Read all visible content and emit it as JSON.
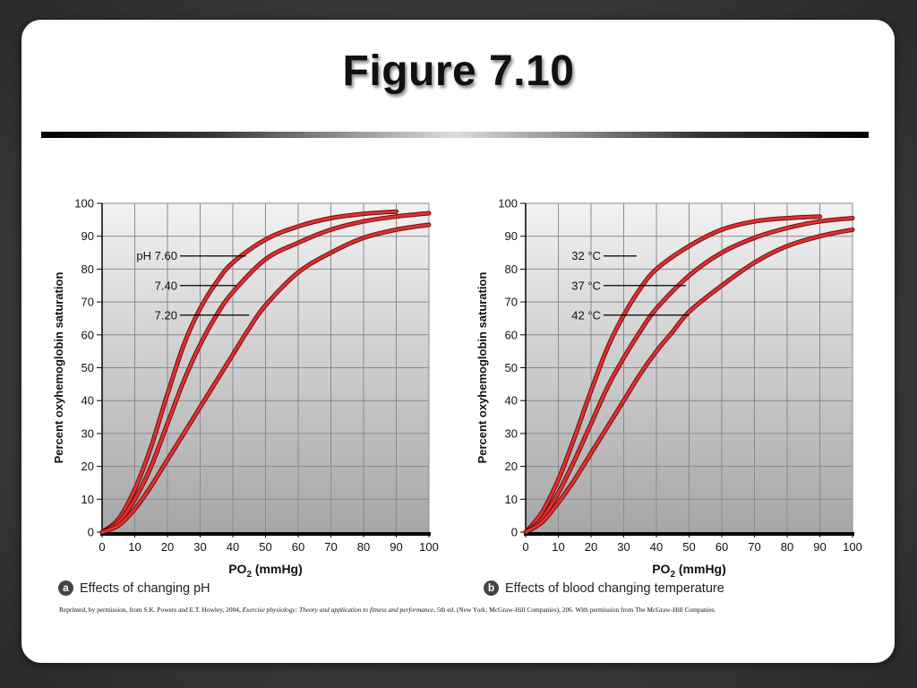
{
  "slide": {
    "title": "Figure 7.10",
    "credit": {
      "pre": "Reprinted, by permission, from S.K. Powers and E.T. Howley, 2004, ",
      "italic": "Exercise physiology: Theory and application to fitness and performance",
      "post": ", 5th ed. (New York: McGraw-Hill Companies), 206. With permission from The McGraw-Hill Companies."
    }
  },
  "colors": {
    "curve": "#e03030",
    "curve_edge": "#6a1010",
    "plot_bg_top": "#f2f2f2",
    "plot_bg_bottom": "#a6a6a6",
    "grid": "#8a8a8a"
  },
  "chart_data": [
    {
      "type": "line",
      "panel_letter": "a",
      "caption": "Effects of changing pH",
      "xlabel_main": "PO",
      "xlabel_sub": "2",
      "xlabel_unit": " (mmHg)",
      "ylabel": "Percent oxyhemoglobin saturation",
      "xlim": [
        0,
        100
      ],
      "ylim": [
        0,
        100
      ],
      "xticks": [
        0,
        10,
        20,
        30,
        40,
        50,
        60,
        70,
        80,
        90,
        100
      ],
      "yticks": [
        0,
        10,
        20,
        30,
        40,
        50,
        60,
        70,
        80,
        90,
        100
      ],
      "grid": true,
      "series": [
        {
          "name": "pH 7.60",
          "x": [
            0,
            5,
            10,
            15,
            20,
            25,
            30,
            35,
            40,
            50,
            60,
            70,
            80,
            90
          ],
          "y": [
            0,
            4,
            13,
            26,
            42,
            57,
            68,
            76,
            82,
            89,
            93,
            95.5,
            96.8,
            97.5
          ]
        },
        {
          "name": "7.40",
          "x": [
            0,
            5,
            10,
            15,
            20,
            25,
            30,
            35,
            40,
            50,
            60,
            70,
            80,
            90,
            100
          ],
          "y": [
            0,
            3,
            10,
            20,
            33,
            46,
            57,
            66,
            73,
            83,
            88,
            92,
            94.5,
            96,
            97
          ]
        },
        {
          "name": "7.20",
          "x": [
            0,
            5,
            10,
            15,
            20,
            25,
            30,
            35,
            40,
            45,
            50,
            60,
            70,
            80,
            90,
            100
          ],
          "y": [
            0,
            2,
            7,
            14,
            22,
            30,
            38,
            46,
            54,
            62,
            69,
            79,
            85,
            89.5,
            92,
            93.5
          ]
        }
      ],
      "annotations": [
        {
          "text": "pH 7.60",
          "label_y": 84,
          "target_x": 44
        },
        {
          "text": "7.40",
          "label_y": 75,
          "target_x": 41
        },
        {
          "text": "7.20",
          "label_y": 66,
          "target_x": 45
        }
      ]
    },
    {
      "type": "line",
      "panel_letter": "b",
      "caption": "Effects of blood changing temperature",
      "xlabel_main": "PO",
      "xlabel_sub": "2",
      "xlabel_unit": " (mmHg)",
      "ylabel": "Percent oxyhemoglobin saturation",
      "xlim": [
        0,
        100
      ],
      "ylim": [
        0,
        100
      ],
      "xticks": [
        0,
        10,
        20,
        30,
        40,
        50,
        60,
        70,
        80,
        90,
        100
      ],
      "yticks": [
        0,
        10,
        20,
        30,
        40,
        50,
        60,
        70,
        80,
        90,
        100
      ],
      "grid": true,
      "series": [
        {
          "name": "32 °C",
          "x": [
            0,
            5,
            10,
            15,
            20,
            25,
            30,
            35,
            40,
            50,
            60,
            70,
            80,
            90
          ],
          "y": [
            0,
            6,
            16,
            29,
            43,
            56,
            66,
            74,
            80,
            87,
            92,
            94.5,
            95.5,
            96
          ]
        },
        {
          "name": "37 °C",
          "x": [
            0,
            5,
            10,
            15,
            20,
            25,
            30,
            35,
            40,
            50,
            60,
            70,
            80,
            90,
            100
          ],
          "y": [
            0,
            4,
            12,
            22,
            33,
            44,
            53,
            61,
            68,
            78,
            85,
            89.5,
            92.5,
            94.5,
            95.5
          ]
        },
        {
          "name": "42 °C",
          "x": [
            0,
            5,
            10,
            15,
            20,
            25,
            30,
            35,
            40,
            45,
            50,
            60,
            70,
            80,
            90,
            100
          ],
          "y": [
            0,
            3,
            9,
            16,
            24,
            32,
            40,
            48,
            55,
            61,
            67,
            75,
            82,
            87,
            90,
            92
          ]
        }
      ],
      "annotations": [
        {
          "text": "32 °C",
          "label_y": 84,
          "target_x": 34
        },
        {
          "text": "37 °C",
          "label_y": 75,
          "target_x": 49
        },
        {
          "text": "42 °C",
          "label_y": 66,
          "target_x": 50
        }
      ]
    }
  ]
}
